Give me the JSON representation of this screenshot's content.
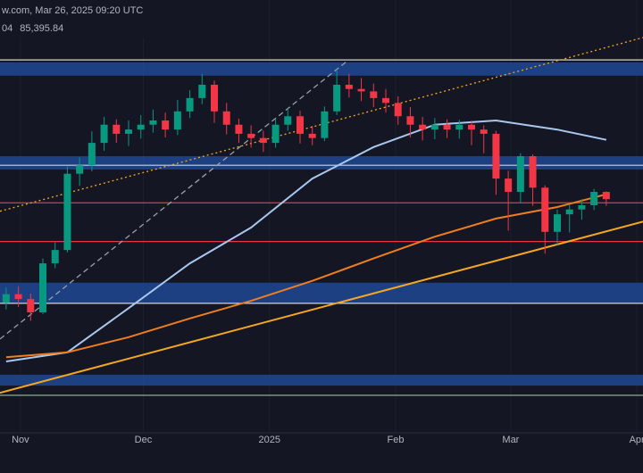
{
  "chart_data": {
    "type": "candlestick",
    "title": "w.com, Mar 26, 2025 09:20 UTC",
    "indicator_values": [
      {
        "text": "04",
        "color": "#5b9cf6"
      },
      {
        "text": "85,395.84",
        "color": "#f7931a"
      }
    ],
    "up_color": "#089981",
    "down_color": "#f23645",
    "xlim": [
      -0.5,
      52
    ],
    "ylim": [
      49000,
      120500
    ],
    "xticks": [
      {
        "value": 1.17,
        "label": "Nov"
      },
      {
        "value": 11.2,
        "label": "Dec"
      },
      {
        "value": 21.5,
        "label": "2025"
      },
      {
        "value": 31.8,
        "label": "Feb"
      },
      {
        "value": 41.2,
        "label": "Mar"
      },
      {
        "value": 51.5,
        "label": "Apr"
      }
    ],
    "candles": [
      [
        70500,
        73000,
        69400,
        71900
      ],
      [
        71900,
        73200,
        69800,
        71100
      ],
      [
        71100,
        72000,
        67500,
        68900
      ],
      [
        68900,
        77800,
        68600,
        77000
      ],
      [
        77000,
        80500,
        76200,
        79200
      ],
      [
        79200,
        93000,
        78800,
        91800
      ],
      [
        91800,
        94500,
        89800,
        93200
      ],
      [
        93200,
        98800,
        92200,
        96900
      ],
      [
        96900,
        101200,
        95600,
        99900
      ],
      [
        99900,
        100800,
        96900,
        98400
      ],
      [
        98400,
        100600,
        96400,
        99100
      ],
      [
        99100,
        101500,
        97600,
        99900
      ],
      [
        99900,
        102400,
        98600,
        100600
      ],
      [
        100600,
        101900,
        97800,
        99100
      ],
      [
        99100,
        104000,
        98200,
        102100
      ],
      [
        102100,
        105600,
        101000,
        104300
      ],
      [
        104300,
        108300,
        103300,
        106500
      ],
      [
        106500,
        107200,
        100200,
        102100
      ],
      [
        102100,
        103500,
        98300,
        99900
      ],
      [
        99900,
        100900,
        96900,
        98400
      ],
      [
        98400,
        99800,
        96100,
        97700
      ],
      [
        97700,
        98900,
        95400,
        96900
      ],
      [
        96900,
        100800,
        96100,
        99900
      ],
      [
        99900,
        102600,
        98900,
        101300
      ],
      [
        101300,
        102200,
        96800,
        98400
      ],
      [
        98400,
        99700,
        96500,
        97700
      ],
      [
        97700,
        102900,
        97200,
        102100
      ],
      [
        102100,
        109000,
        101500,
        106500
      ],
      [
        106500,
        108300,
        104400,
        105800
      ],
      [
        105800,
        107600,
        103800,
        105400
      ],
      [
        105400,
        106700,
        102800,
        104300
      ],
      [
        104300,
        105800,
        101900,
        103500
      ],
      [
        103500,
        104600,
        99900,
        101300
      ],
      [
        101300,
        102800,
        97800,
        99900
      ],
      [
        99900,
        101200,
        97300,
        99100
      ],
      [
        99100,
        101000,
        97500,
        99900
      ],
      [
        99900,
        100800,
        97700,
        99100
      ],
      [
        99100,
        100700,
        97600,
        99900
      ],
      [
        99900,
        100600,
        96500,
        99100
      ],
      [
        99100,
        99800,
        95200,
        98400
      ],
      [
        98400,
        98900,
        88300,
        91000
      ],
      [
        91000,
        92300,
        82400,
        88800
      ],
      [
        88800,
        95200,
        86900,
        94700
      ],
      [
        94700,
        95000,
        86500,
        89500
      ],
      [
        89500,
        89900,
        78600,
        82200
      ],
      [
        82200,
        85900,
        80000,
        85100
      ],
      [
        85100,
        86800,
        82100,
        85900
      ],
      [
        85900,
        87600,
        84200,
        86600
      ],
      [
        86600,
        89300,
        85800,
        88800
      ],
      [
        88800,
        88900,
        86500,
        87600
      ]
    ],
    "lines": [
      {
        "color": "#a9c7ee",
        "x": [
          0,
          5,
          10,
          15,
          20,
          25,
          30,
          35,
          40,
          45,
          49
        ],
        "values": [
          60800,
          62300,
          69600,
          77000,
          82900,
          91000,
          96200,
          99900,
          100600,
          99100,
          97400
        ]
      },
      {
        "color": "#f07d1e",
        "x": [
          0,
          5,
          10,
          15,
          20,
          25,
          30,
          35,
          40,
          45,
          49
        ],
        "values": [
          61500,
          62300,
          64800,
          67900,
          70800,
          74100,
          77800,
          81400,
          84400,
          86300,
          88400
        ]
      }
    ],
    "trendlines": [
      {
        "color": "#f5a623",
        "style": "solid",
        "x": [
          -0.5,
          52
        ],
        "values": [
          55600,
          83900
        ]
      },
      {
        "color": "#f5a623",
        "style": "dotted",
        "x": [
          -0.5,
          52
        ],
        "values": [
          85600,
          114300
        ]
      },
      {
        "color": "#9aa0aa",
        "style": "dashed",
        "x": [
          -0.5,
          27.9
        ],
        "values": [
          64500,
          110500
        ]
      }
    ],
    "zones": [
      {
        "color": "#1f4fa3",
        "values": [
          108000,
          110200
        ]
      },
      {
        "color": "#1f4fa3",
        "values": [
          92500,
          94700
        ]
      },
      {
        "color": "#1f4fa3",
        "values": [
          70400,
          73800
        ]
      },
      {
        "color": "#1f4fa3",
        "values": [
          56800,
          58600
        ]
      }
    ],
    "levels": [
      {
        "color": "#d0d3da",
        "value": 110600
      },
      {
        "color": "#d0d3da",
        "value": 93200
      },
      {
        "color": "#e0394a",
        "value": 87000
      },
      {
        "color": "#e0394a",
        "value": 80600
      },
      {
        "color": "#d0d3da",
        "value": 70400
      },
      {
        "color": "#8fbf9a",
        "value": 55200
      }
    ]
  }
}
